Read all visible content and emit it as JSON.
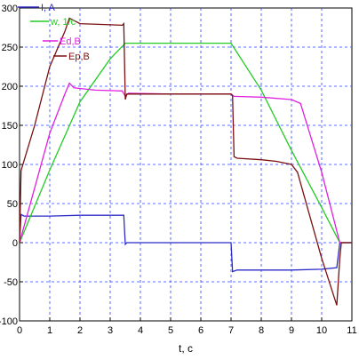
{
  "chart_data": {
    "type": "line",
    "xlabel": "t, c",
    "ylabel": "",
    "xlim": [
      0,
      11
    ],
    "ylim": [
      -100,
      300
    ],
    "grid": true,
    "xticks": [
      "0",
      "1",
      "2",
      "3",
      "4",
      "5",
      "6",
      "7",
      "8",
      "9",
      "10",
      "11"
    ],
    "yticks": [
      "300",
      "250",
      "200",
      "150",
      "100",
      "50",
      "0",
      "-50",
      "-100"
    ],
    "legend_position": "top-left",
    "series": [
      {
        "name": "I, A",
        "color": "#2b2bc8",
        "points": [
          [
            0,
            0
          ],
          [
            0.05,
            36
          ],
          [
            0.15,
            34
          ],
          [
            1,
            34
          ],
          [
            2,
            35
          ],
          [
            3.4,
            35
          ],
          [
            3.45,
            35
          ],
          [
            3.5,
            -2
          ],
          [
            3.55,
            0
          ],
          [
            4,
            0
          ],
          [
            5,
            0
          ],
          [
            6,
            0
          ],
          [
            7,
            0
          ],
          [
            7.05,
            -37
          ],
          [
            7.2,
            -35
          ],
          [
            8,
            -35
          ],
          [
            9,
            -35
          ],
          [
            10,
            -34
          ],
          [
            10.5,
            -32
          ],
          [
            10.6,
            0
          ],
          [
            11,
            0
          ]
        ]
      },
      {
        "name": "w, 1/c",
        "color": "#22cc22",
        "points": [
          [
            0,
            0
          ],
          [
            1,
            93
          ],
          [
            2,
            180
          ],
          [
            3,
            235
          ],
          [
            3.5,
            255
          ],
          [
            4,
            255
          ],
          [
            5,
            255
          ],
          [
            6,
            255
          ],
          [
            7,
            255
          ],
          [
            8,
            195
          ],
          [
            9,
            118
          ],
          [
            10,
            45
          ],
          [
            10.6,
            0
          ],
          [
            11,
            0
          ]
        ]
      },
      {
        "name": "Ed,B",
        "color": "#e020e0",
        "points": [
          [
            0,
            0
          ],
          [
            1,
            140
          ],
          [
            1.5,
            190
          ],
          [
            1.65,
            204
          ],
          [
            1.8,
            198
          ],
          [
            2.5,
            195
          ],
          [
            3.4,
            194
          ],
          [
            3.5,
            187
          ],
          [
            3.6,
            191
          ],
          [
            5,
            190
          ],
          [
            6,
            190
          ],
          [
            7,
            190
          ],
          [
            7.1,
            187
          ],
          [
            8,
            186
          ],
          [
            9,
            183
          ],
          [
            9.3,
            178
          ],
          [
            10,
            90
          ],
          [
            10.6,
            0
          ],
          [
            11,
            0
          ]
        ]
      },
      {
        "name": "Ep,B",
        "color": "#7a1010",
        "points": [
          [
            0,
            0
          ],
          [
            0.05,
            92
          ],
          [
            0.5,
            150
          ],
          [
            1,
            225
          ],
          [
            1.5,
            270
          ],
          [
            1.65,
            287
          ],
          [
            1.8,
            284
          ],
          [
            2,
            280
          ],
          [
            3.4,
            278
          ],
          [
            3.45,
            280
          ],
          [
            3.5,
            183
          ],
          [
            3.55,
            190
          ],
          [
            4,
            190
          ],
          [
            5,
            190
          ],
          [
            6,
            190
          ],
          [
            7,
            190
          ],
          [
            7.05,
            188
          ],
          [
            7.1,
            110
          ],
          [
            7.2,
            108
          ],
          [
            8,
            106
          ],
          [
            8.5,
            104
          ],
          [
            9,
            100
          ],
          [
            9.2,
            90
          ],
          [
            10,
            -20
          ],
          [
            10.5,
            -80
          ],
          [
            10.6,
            -20
          ],
          [
            10.65,
            0
          ],
          [
            11,
            0
          ]
        ]
      }
    ]
  }
}
